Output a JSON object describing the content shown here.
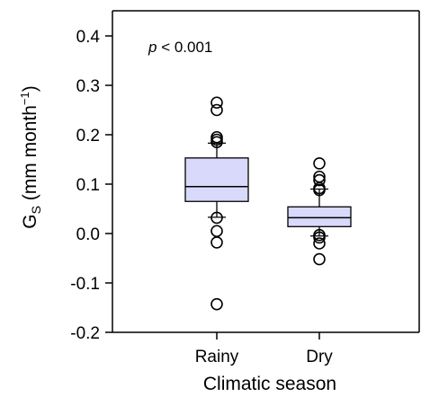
{
  "chart_data": {
    "type": "box",
    "title": "",
    "xlabel": "Climatic season",
    "ylabel": {
      "base": "G",
      "subscript": "S",
      "units_prefix": " (mm month",
      "superscript": "−1",
      "units_suffix": ")"
    },
    "annotation": {
      "italic": "p",
      "rest": " < 0.001"
    },
    "ylim": [
      -0.2,
      0.45
    ],
    "yticks": [
      {
        "value": -0.2,
        "label": "-0.2"
      },
      {
        "value": -0.1,
        "label": "-0.1"
      },
      {
        "value": 0.0,
        "label": "0.0"
      },
      {
        "value": 0.1,
        "label": "0.1"
      },
      {
        "value": 0.2,
        "label": "0.2"
      },
      {
        "value": 0.3,
        "label": "0.3"
      },
      {
        "value": 0.4,
        "label": "0.4"
      }
    ],
    "categories": [
      "Rainy",
      "Dry"
    ],
    "boxes": [
      {
        "category": "Rainy",
        "q1": 0.065,
        "median": 0.095,
        "q3": 0.153,
        "whisker_low": 0.033,
        "whisker_high": 0.183,
        "outliers": [
          0.265,
          0.25,
          0.195,
          0.19,
          0.185,
          0.032,
          0.005,
          -0.018,
          -0.143
        ]
      },
      {
        "category": "Dry",
        "q1": 0.014,
        "median": 0.032,
        "q3": 0.054,
        "whisker_low": -0.005,
        "whisker_high": 0.09,
        "outliers": [
          0.142,
          0.115,
          0.108,
          0.092,
          0.088,
          -0.003,
          -0.008,
          -0.02,
          -0.052
        ]
      }
    ],
    "colors": {
      "box_fill": "#d9d9fb",
      "stroke": "#000000",
      "background": "#ffffff"
    }
  }
}
